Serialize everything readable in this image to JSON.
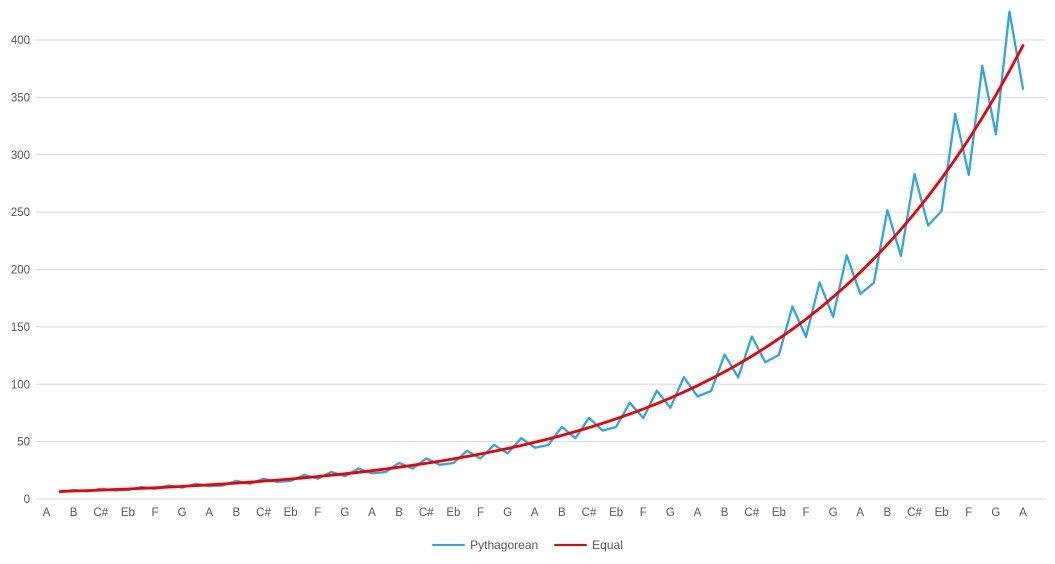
{
  "chart_data": {
    "type": "line",
    "title": "",
    "x_axis": {
      "visible_tick_labels": [
        "A",
        "B",
        "C#",
        "Eb",
        "F",
        "G",
        "A",
        "B",
        "C#",
        "Eb",
        "F",
        "G",
        "A",
        "B",
        "C#",
        "Eb",
        "F",
        "G",
        "A",
        "B",
        "C#",
        "Eb",
        "F",
        "G",
        "A",
        "B",
        "C#",
        "Eb",
        "F",
        "G",
        "A",
        "B",
        "C#",
        "Eb",
        "F",
        "G",
        "A"
      ],
      "labels_every_n_categories": 2
    },
    "y_axis": {
      "ticks": [
        0,
        50,
        100,
        150,
        200,
        250,
        300,
        350,
        400
      ],
      "min": 0,
      "max": 430,
      "gridlines": true
    },
    "legend_position": "bottom",
    "series": [
      {
        "name": "Pythagorean",
        "color": "#29A9E0",
        "start_category_index": 1,
        "values": [
          5.88,
          7.87,
          6.62,
          8.85,
          7.45,
          7.85,
          10.49,
          8.83,
          11.8,
          9.93,
          13.27,
          11.17,
          11.77,
          15.73,
          13.24,
          17.7,
          14.9,
          15.69,
          20.97,
          17.65,
          23.6,
          19.86,
          26.55,
          22.34,
          23.54,
          31.46,
          26.48,
          35.39,
          29.79,
          31.39,
          41.95,
          35.31,
          47.19,
          39.72,
          53.09,
          44.69,
          47.08,
          62.92,
          52.96,
          70.79,
          59.58,
          62.77,
          83.9,
          70.62,
          94.38,
          79.44,
          106.18,
          89.38,
          94.16,
          125.84,
          105.93,
          141.57,
          119.17,
          125.54,
          167.79,
          141.24,
          188.77,
          158.89,
          212.36,
          178.75,
          188.31,
          251.69,
          211.85,
          283.15,
          238.33,
          251.08,
          335.58,
          282.47,
          377.53,
          317.78,
          424.72,
          357.5
        ]
      },
      {
        "name": "Equal",
        "color": "#F20000",
        "start_category_index": 1,
        "values": [
          6.54,
          6.93,
          7.34,
          7.78,
          8.24,
          8.73,
          9.25,
          9.8,
          10.38,
          11.0,
          11.65,
          12.35,
          13.08,
          13.86,
          14.68,
          15.56,
          16.48,
          17.46,
          18.5,
          19.6,
          20.77,
          22.0,
          23.31,
          24.7,
          26.16,
          27.72,
          29.37,
          31.11,
          32.96,
          34.92,
          37.0,
          39.2,
          41.53,
          44.0,
          46.62,
          49.39,
          52.33,
          55.44,
          58.74,
          62.23,
          65.93,
          69.85,
          74.0,
          78.4,
          83.07,
          88.01,
          93.24,
          98.78,
          104.66,
          110.88,
          117.47,
          124.46,
          131.86,
          139.7,
          148.01,
          156.81,
          166.13,
          176.01,
          186.48,
          197.57,
          209.31,
          221.76,
          234.94,
          248.92,
          263.72,
          279.4,
          296.01,
          313.62,
          332.27,
          352.02,
          372.95,
          395.13
        ]
      }
    ]
  },
  "colors": {
    "background": "#FFFFFF",
    "gridline": "#D9D9D9",
    "axis_text": "#595959"
  }
}
